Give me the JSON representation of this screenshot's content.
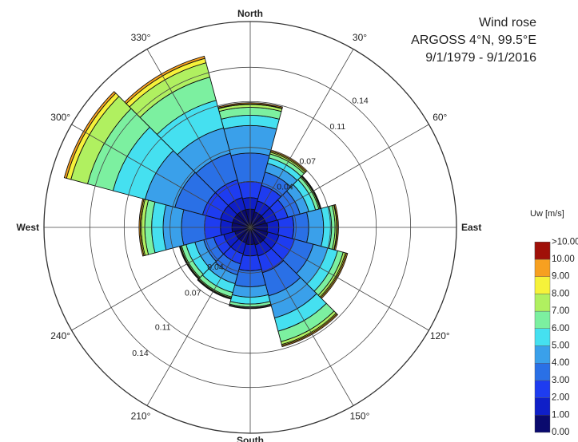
{
  "chart_data": {
    "type": "wind-rose",
    "title": "Wind rose",
    "subtitle_lines": [
      "ARGOSS 4°N, 99.5°E",
      "9/1/1979 - 9/1/2016"
    ],
    "direction_labels": {
      "north": "North",
      "east": "East",
      "south": "South",
      "west": "West"
    },
    "angle_labels": [
      "30°",
      "60°",
      "120°",
      "150°",
      "210°",
      "240°",
      "300°",
      "330°"
    ],
    "radial_axis": {
      "ticks": [
        0.04,
        0.07,
        0.11,
        0.14
      ],
      "tick_labels": [
        "0.04",
        "0.07",
        "0.11",
        "0.14"
      ],
      "range": [
        0,
        0.18
      ]
    },
    "speed_bins": {
      "legend_title": "Uw [m/s]",
      "labels": [
        "0.00",
        "1.00",
        "2.00",
        "3.00",
        "4.00",
        "5.00",
        "6.00",
        "7.00",
        "8.00",
        "9.00",
        "10.00",
        ">10.00"
      ],
      "colors": [
        "#0a0a6e",
        "#0f1fc8",
        "#1e3cf0",
        "#2a70e6",
        "#3aa0ea",
        "#45e0f0",
        "#7cf0a0",
        "#b0f060",
        "#f6f23a",
        "#f7a020",
        "#f04010",
        "#a01008"
      ]
    },
    "sectors": [
      {
        "direction": 0,
        "cumulative": [
          0.016,
          0.026,
          0.04,
          0.065,
          0.089,
          0.098,
          0.105,
          0.1075,
          0.108,
          0.109
        ]
      },
      {
        "direction": 30,
        "cumulative": [
          0.014,
          0.024,
          0.038,
          0.05,
          0.058,
          0.063,
          0.0665,
          0.068,
          0.069,
          0.07
        ]
      },
      {
        "direction": 60,
        "cumulative": [
          0.014,
          0.024,
          0.034,
          0.045,
          0.053,
          0.059,
          0.062,
          0.063,
          0.0635,
          0.064
        ]
      },
      {
        "direction": 90,
        "cumulative": [
          0.015,
          0.025,
          0.038,
          0.051,
          0.064,
          0.071,
          0.074,
          0.0755,
          0.076,
          0.077
        ]
      },
      {
        "direction": 120,
        "cumulative": [
          0.016,
          0.026,
          0.04,
          0.057,
          0.07,
          0.079,
          0.084,
          0.086,
          0.087,
          0.088
        ]
      },
      {
        "direction": 150,
        "cumulative": [
          0.016,
          0.026,
          0.041,
          0.062,
          0.082,
          0.094,
          0.1035,
          0.106,
          0.107,
          0.108
        ]
      },
      {
        "direction": 180,
        "cumulative": [
          0.015,
          0.025,
          0.038,
          0.052,
          0.061,
          0.067,
          0.0695,
          0.07,
          0.0705,
          0.071
        ]
      },
      {
        "direction": 210,
        "cumulative": [
          0.014,
          0.024,
          0.033,
          0.043,
          0.051,
          0.059,
          0.063,
          0.064,
          0.0645,
          0.065
        ]
      },
      {
        "direction": 240,
        "cumulative": [
          0.014,
          0.024,
          0.033,
          0.042,
          0.05,
          0.058,
          0.062,
          0.063,
          0.0635,
          0.064
        ]
      },
      {
        "direction": 270,
        "cumulative": [
          0.016,
          0.026,
          0.04,
          0.06,
          0.076,
          0.086,
          0.092,
          0.095,
          0.096,
          0.097
        ]
      },
      {
        "direction": 300,
        "cumulative": [
          0.016,
          0.027,
          0.043,
          0.068,
          0.095,
          0.124,
          0.147,
          0.162,
          0.166,
          0.168
        ]
      },
      {
        "direction": 330,
        "cumulative": [
          0.016,
          0.027,
          0.043,
          0.067,
          0.09,
          0.115,
          0.136,
          0.149,
          0.153,
          0.155
        ]
      }
    ],
    "grid": true,
    "legend_position": "right"
  }
}
